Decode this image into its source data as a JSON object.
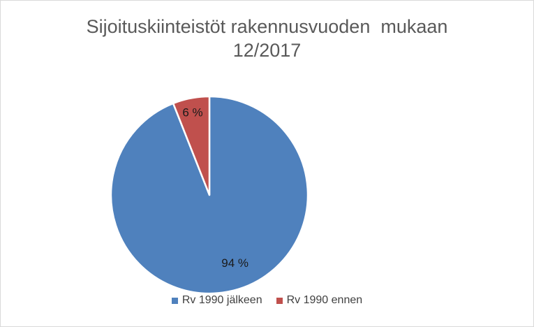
{
  "chart_data": {
    "type": "pie",
    "title_lines": [
      "Sijoituskiinteistöt rakennusvuoden  mukaan",
      "12/2017"
    ],
    "slices": [
      {
        "label": "Rv 1990 jälkeen",
        "value": 94,
        "data_label": "94 %",
        "color": "#4f81bd"
      },
      {
        "label": "Rv 1990 ennen",
        "value": 6,
        "data_label": "6 %",
        "color": "#c0504d"
      }
    ],
    "legend_position": "bottom"
  }
}
